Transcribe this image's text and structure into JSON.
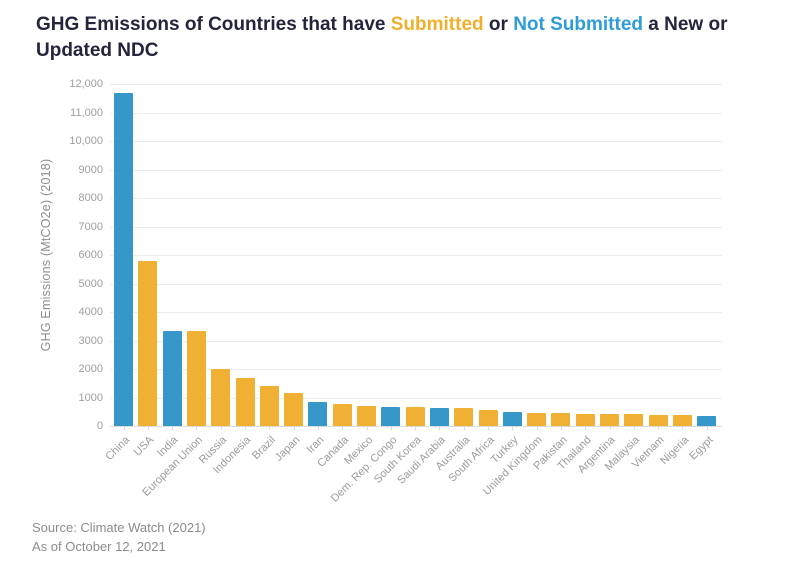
{
  "title": {
    "text_before": "GHG Emissions of Countries that have",
    "submitted_label": "Submitted",
    "connector": "or",
    "not_submitted_label": "Not Submitted",
    "text_after_line1": "a New or",
    "line2": "Updated NDC",
    "text_color": "#24243C",
    "submitted_color": "#F0B02E",
    "not_submitted_color": "#2E9CD8"
  },
  "footer": {
    "source_line": "Source: Climate Watch (2021)",
    "as_of_line": "As of October 12, 2021"
  },
  "chart_data": {
    "type": "bar",
    "title": "GHG Emissions of Countries that have Submitted or Not Submitted a New or Updated NDC",
    "xlabel": "",
    "ylabel": "GHG Emissions (MtCO2e) (2018)",
    "ylim": [
      0,
      12000
    ],
    "grid": "horizontal",
    "legend_position": "none (series encoded by colored words in title)",
    "ytick_values": [
      0,
      1000,
      2000,
      3000,
      4000,
      5000,
      6000,
      7000,
      8000,
      9000,
      10000,
      11000,
      12000
    ],
    "ytick_labels": [
      "0",
      "1000",
      "2000",
      "3000",
      "4000",
      "5000",
      "6000",
      "7000",
      "8000",
      "9000",
      "10,000",
      "11,000",
      "12,000"
    ],
    "bar_colors": {
      "submitted": "#F0B033",
      "not_submitted": "#3598C8"
    },
    "categories": [
      "China",
      "USA",
      "India",
      "European Union",
      "Russia",
      "Indonesia",
      "Brazil",
      "Japan",
      "Iran",
      "Canada",
      "Mexico",
      "Dem. Rep. Congo",
      "South Korea",
      "Saudi Arabia",
      "Australia",
      "South Africa",
      "Turkey",
      "United Kingdom",
      "Pakistan",
      "Thailand",
      "Argentina",
      "Malaysia",
      "Vietnam",
      "Nigeria",
      "Egypt"
    ],
    "values": [
      11700,
      5800,
      3350,
      3330,
      2000,
      1700,
      1420,
      1150,
      830,
      760,
      700,
      680,
      670,
      640,
      620,
      560,
      500,
      450,
      440,
      430,
      420,
      410,
      400,
      390,
      340
    ],
    "status": [
      "not_submitted",
      "submitted",
      "not_submitted",
      "submitted",
      "submitted",
      "submitted",
      "submitted",
      "submitted",
      "not_submitted",
      "submitted",
      "submitted",
      "not_submitted",
      "submitted",
      "not_submitted",
      "submitted",
      "submitted",
      "not_submitted",
      "submitted",
      "submitted",
      "submitted",
      "submitted",
      "submitted",
      "submitted",
      "submitted",
      "not_submitted"
    ]
  }
}
